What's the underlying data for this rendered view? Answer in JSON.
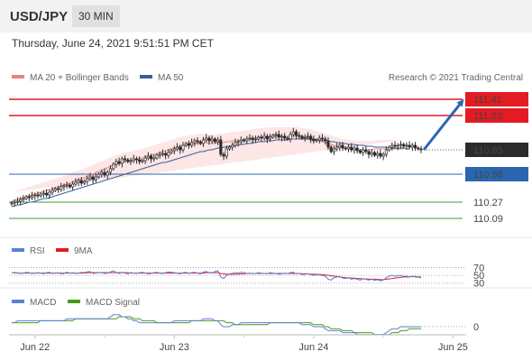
{
  "header": {
    "pair": "USD/JPY",
    "timeframe": "30 MIN",
    "datetime": "Thursday, June 24, 2021 9:51:51 PM CET"
  },
  "legend": {
    "ma20": "MA 20 + Bollinger Bands",
    "ma50": "MA 50",
    "copyright": "Research © 2021 Trading Central"
  },
  "colors": {
    "resistance": "#e31b23",
    "pivot": "#2a66b0",
    "support": "#3f9a3f",
    "ma20": "#f08080",
    "ma50": "#3a5fa0",
    "candle_up": "#2b2b2b",
    "candle_down": "#2b2b2b",
    "rsi": "#5b7fd4",
    "rsi_ma": "#e31b23",
    "macd": "#5b7fd4",
    "macd_signal": "#4a9a1a",
    "arrow": "#2a66b0"
  },
  "levels": [
    {
      "value": 111.41,
      "label": "111.41",
      "kind": "resistance"
    },
    {
      "value": 111.23,
      "label": "111.23",
      "kind": "resistance"
    },
    {
      "value": 110.85,
      "label": "110.85",
      "kind": "last"
    },
    {
      "value": 110.58,
      "label": "110.58",
      "kind": "pivot"
    },
    {
      "value": 110.27,
      "label": "110.27",
      "kind": "support"
    },
    {
      "value": 110.09,
      "label": "110.09",
      "kind": "support"
    }
  ],
  "chart_data": {
    "type": "candlestick",
    "x_labels": [
      "Jun 22",
      "Jun 23",
      "Jun 24",
      "Jun 25"
    ],
    "x_label_index": [
      8,
      56,
      104,
      152
    ],
    "price_range": [
      109.95,
      111.55
    ],
    "closes": [
      110.26,
      110.27,
      110.28,
      110.3,
      110.31,
      110.33,
      110.32,
      110.34,
      110.35,
      110.34,
      110.36,
      110.37,
      110.35,
      110.38,
      110.4,
      110.42,
      110.41,
      110.44,
      110.45,
      110.46,
      110.44,
      110.47,
      110.49,
      110.51,
      110.48,
      110.5,
      110.53,
      110.55,
      110.52,
      110.55,
      110.58,
      110.6,
      110.57,
      110.6,
      110.64,
      110.69,
      110.72,
      110.7,
      110.75,
      110.74,
      110.72,
      110.73,
      110.75,
      110.74,
      110.72,
      110.73,
      110.76,
      110.78,
      110.75,
      110.76,
      110.79,
      110.8,
      110.81,
      110.79,
      110.82,
      110.84,
      110.86,
      110.88,
      110.85,
      110.9,
      110.92,
      110.9,
      110.93,
      110.95,
      110.94,
      110.92,
      110.96,
      110.98,
      110.95,
      110.97,
      110.94,
      110.96,
      110.8,
      110.78,
      110.86,
      110.88,
      110.9,
      110.93,
      110.94,
      110.96,
      110.95,
      110.97,
      110.98,
      110.96,
      110.97,
      110.99,
      110.98,
      111.0,
      110.97,
      110.99,
      111.01,
      111.02,
      110.99,
      111.0,
      110.98,
      110.97,
      111.02,
      111.05,
      111.01,
      111.0,
      110.98,
      110.99,
      111.0,
      110.97,
      110.95,
      110.96,
      110.98,
      110.97,
      110.95,
      110.88,
      110.83,
      110.86,
      110.88,
      110.9,
      110.87,
      110.86,
      110.88,
      110.85,
      110.87,
      110.84,
      110.82,
      110.85,
      110.83,
      110.8,
      110.82,
      110.79,
      110.81,
      110.78,
      110.8,
      110.85,
      110.88,
      110.9,
      110.89,
      110.9,
      110.91,
      110.89,
      110.9,
      110.88,
      110.9,
      110.87,
      110.86,
      110.85
    ],
    "ma20": [
      110.28,
      110.29,
      110.3,
      110.31,
      110.32,
      110.33,
      110.34,
      110.35,
      110.36,
      110.37,
      110.38,
      110.39,
      110.4,
      110.41,
      110.42,
      110.43,
      110.44,
      110.45,
      110.46,
      110.47,
      110.48,
      110.5,
      110.51,
      110.52,
      110.53,
      110.54,
      110.56,
      110.57,
      110.58,
      110.6,
      110.61,
      110.62,
      110.64,
      110.65,
      110.67,
      110.68,
      110.69,
      110.7,
      110.71,
      110.72,
      110.73,
      110.73,
      110.74,
      110.75,
      110.75,
      110.76,
      110.77,
      110.78,
      110.79,
      110.8,
      110.81,
      110.82,
      110.83,
      110.84,
      110.85,
      110.86,
      110.87,
      110.88,
      110.89,
      110.9,
      110.9,
      110.91,
      110.91,
      110.92,
      110.92,
      110.93,
      110.93,
      110.93,
      110.92,
      110.92,
      110.92,
      110.93,
      110.93,
      110.93,
      110.94,
      110.94,
      110.95,
      110.95,
      110.95,
      110.96,
      110.96,
      110.97,
      110.97,
      110.98,
      110.98,
      110.99,
      110.99,
      110.99,
      111.0,
      111.0,
      111.0,
      111.0,
      111.0,
      111.0,
      111.0,
      111.0,
      111.0,
      111.0,
      111.0,
      111.0,
      110.99,
      110.99,
      110.98,
      110.98,
      110.97,
      110.96,
      110.95,
      110.94,
      110.93,
      110.92,
      110.91,
      110.9,
      110.89,
      110.88,
      110.87,
      110.87,
      110.86,
      110.86,
      110.85,
      110.85,
      110.85,
      110.85,
      110.85,
      110.85,
      110.85,
      110.86,
      110.86,
      110.86,
      110.86,
      110.86,
      110.86,
      110.86,
      110.86,
      110.86,
      110.86,
      110.86
    ],
    "ma50": [
      110.22,
      110.23,
      110.24,
      110.24,
      110.25,
      110.26,
      110.27,
      110.27,
      110.28,
      110.29,
      110.3,
      110.31,
      110.31,
      110.32,
      110.33,
      110.34,
      110.35,
      110.36,
      110.37,
      110.38,
      110.39,
      110.4,
      110.41,
      110.42,
      110.43,
      110.44,
      110.45,
      110.46,
      110.47,
      110.48,
      110.49,
      110.5,
      110.51,
      110.52,
      110.53,
      110.54,
      110.55,
      110.56,
      110.57,
      110.58,
      110.59,
      110.6,
      110.61,
      110.62,
      110.63,
      110.64,
      110.65,
      110.66,
      110.67,
      110.68,
      110.69,
      110.7,
      110.71,
      110.71,
      110.72,
      110.73,
      110.74,
      110.75,
      110.76,
      110.77,
      110.78,
      110.79,
      110.8,
      110.81,
      110.82,
      110.83,
      110.83,
      110.84,
      110.85,
      110.85,
      110.86,
      110.87,
      110.87,
      110.88,
      110.88,
      110.89,
      110.89,
      110.9,
      110.9,
      110.91,
      110.91,
      110.92,
      110.92,
      110.93,
      110.93,
      110.94,
      110.94,
      110.94,
      110.95,
      110.95,
      110.95,
      110.96,
      110.96,
      110.96,
      110.96,
      110.96,
      110.97,
      110.97,
      110.97,
      110.97,
      110.97,
      110.97,
      110.97,
      110.96,
      110.96,
      110.96,
      110.96,
      110.95,
      110.95,
      110.95,
      110.94,
      110.94,
      110.93,
      110.93,
      110.92,
      110.92,
      110.91,
      110.91,
      110.91,
      110.9,
      110.9,
      110.9,
      110.89,
      110.89,
      110.89,
      110.88,
      110.88,
      110.88,
      110.88,
      110.88,
      110.87,
      110.87,
      110.87,
      110.87,
      110.87,
      110.87,
      110.86,
      110.86
    ],
    "bb_width": 0.1,
    "projection": {
      "from": 110.85,
      "to": 111.41
    },
    "rsi": {
      "legend": [
        "RSI",
        "9MA"
      ],
      "levels": [
        "70",
        "50",
        "30"
      ],
      "level_values": [
        70,
        50,
        30
      ],
      "rsi": [
        58,
        56,
        57,
        55,
        56,
        58,
        57,
        55,
        56,
        57,
        56,
        54,
        57,
        58,
        55,
        56,
        57,
        54,
        55,
        58,
        56,
        57,
        55,
        56,
        58,
        57,
        59,
        60,
        55,
        56,
        58,
        57,
        55,
        56,
        59,
        62,
        57,
        55,
        58,
        56,
        54,
        57,
        56,
        55,
        57,
        58,
        56,
        54,
        55,
        57,
        58,
        56,
        55,
        57,
        59,
        58,
        57,
        56,
        54,
        57,
        58,
        55,
        57,
        58,
        56,
        54,
        59,
        60,
        57,
        56,
        60,
        62,
        46,
        42,
        50,
        54,
        55,
        57,
        56,
        58,
        57,
        55,
        56,
        54,
        55,
        57,
        56,
        55,
        54,
        57,
        56,
        55,
        53,
        54,
        56,
        55,
        57,
        58,
        54,
        55,
        52,
        53,
        54,
        52,
        50,
        52,
        51,
        50,
        48,
        40,
        38,
        44,
        46,
        47,
        43,
        42,
        44,
        40,
        42,
        40,
        38,
        41,
        40,
        38,
        40,
        37,
        39,
        36,
        38,
        44,
        48,
        50,
        48,
        49,
        50,
        47,
        48,
        46,
        48,
        46,
        45,
        44
      ],
      "ma": [
        57,
        57,
        56,
        56,
        56,
        56,
        56,
        56,
        56,
        56,
        56,
        56,
        56,
        56,
        56,
        56,
        56,
        56,
        56,
        56,
        56,
        56,
        56,
        56,
        56,
        56,
        57,
        57,
        57,
        57,
        57,
        57,
        57,
        57,
        57,
        57,
        57,
        57,
        57,
        57,
        57,
        56,
        56,
        56,
        56,
        56,
        56,
        56,
        56,
        56,
        56,
        56,
        56,
        56,
        56,
        56,
        56,
        56,
        56,
        56,
        56,
        56,
        56,
        56,
        56,
        56,
        56,
        57,
        57,
        57,
        57,
        57,
        55,
        54,
        53,
        53,
        53,
        53,
        53,
        54,
        54,
        55,
        55,
        55,
        55,
        55,
        55,
        55,
        55,
        55,
        55,
        55,
        55,
        55,
        55,
        55,
        55,
        55,
        55,
        55,
        54,
        54,
        54,
        53,
        53,
        53,
        52,
        52,
        51,
        50,
        49,
        48,
        47,
        46,
        45,
        44,
        44,
        43,
        43,
        42,
        42,
        41,
        41,
        40,
        40,
        40,
        40,
        39,
        39,
        40,
        41,
        42,
        43,
        44,
        45,
        46,
        46,
        46,
        47,
        47,
        46,
        46
      ]
    },
    "macd": {
      "legend": [
        "MACD",
        "MACD Signal"
      ],
      "zero_label": "0",
      "macd": [
        0.02,
        0.02,
        0.03,
        0.03,
        0.03,
        0.03,
        0.03,
        0.03,
        0.03,
        0.03,
        0.03,
        0.03,
        0.03,
        0.03,
        0.03,
        0.03,
        0.03,
        0.03,
        0.03,
        0.04,
        0.04,
        0.04,
        0.04,
        0.04,
        0.04,
        0.04,
        0.04,
        0.04,
        0.04,
        0.04,
        0.04,
        0.04,
        0.04,
        0.04,
        0.05,
        0.06,
        0.06,
        0.06,
        0.05,
        0.05,
        0.04,
        0.04,
        0.03,
        0.03,
        0.02,
        0.02,
        0.02,
        0.02,
        0.02,
        0.02,
        0.02,
        0.02,
        0.02,
        0.02,
        0.02,
        0.02,
        0.03,
        0.03,
        0.03,
        0.03,
        0.03,
        0.03,
        0.03,
        0.03,
        0.03,
        0.03,
        0.04,
        0.04,
        0.04,
        0.04,
        0.03,
        0.03,
        0.01,
        0.0,
        0.0,
        0.0,
        0.01,
        0.01,
        0.01,
        0.02,
        0.02,
        0.02,
        0.02,
        0.02,
        0.02,
        0.02,
        0.02,
        0.02,
        0.02,
        0.02,
        0.02,
        0.02,
        0.02,
        0.02,
        0.02,
        0.02,
        0.02,
        0.02,
        0.02,
        0.02,
        0.01,
        0.01,
        0.01,
        0.01,
        0.0,
        0.0,
        0.0,
        0.0,
        -0.01,
        -0.02,
        -0.02,
        -0.02,
        -0.02,
        -0.02,
        -0.03,
        -0.03,
        -0.03,
        -0.03,
        -0.03,
        -0.04,
        -0.04,
        -0.04,
        -0.04,
        -0.04,
        -0.04,
        -0.04,
        -0.04,
        -0.04,
        -0.04,
        -0.03,
        -0.02,
        -0.01,
        -0.01,
        -0.01,
        0.0,
        0.0,
        0.0,
        0.0,
        0.0,
        0.0,
        0.0,
        0.0
      ],
      "signal": [
        0.02,
        0.02,
        0.02,
        0.02,
        0.02,
        0.02,
        0.02,
        0.02,
        0.02,
        0.02,
        0.03,
        0.03,
        0.03,
        0.03,
        0.03,
        0.03,
        0.03,
        0.03,
        0.03,
        0.03,
        0.03,
        0.03,
        0.04,
        0.04,
        0.04,
        0.04,
        0.04,
        0.04,
        0.04,
        0.04,
        0.04,
        0.04,
        0.04,
        0.04,
        0.04,
        0.04,
        0.04,
        0.05,
        0.05,
        0.05,
        0.05,
        0.05,
        0.04,
        0.04,
        0.04,
        0.03,
        0.03,
        0.03,
        0.03,
        0.03,
        0.02,
        0.02,
        0.02,
        0.02,
        0.02,
        0.02,
        0.02,
        0.02,
        0.02,
        0.02,
        0.02,
        0.02,
        0.03,
        0.03,
        0.03,
        0.03,
        0.03,
        0.03,
        0.03,
        0.03,
        0.03,
        0.03,
        0.03,
        0.03,
        0.02,
        0.02,
        0.02,
        0.01,
        0.01,
        0.01,
        0.01,
        0.01,
        0.01,
        0.01,
        0.01,
        0.01,
        0.01,
        0.01,
        0.01,
        0.02,
        0.02,
        0.02,
        0.02,
        0.02,
        0.02,
        0.02,
        0.02,
        0.02,
        0.02,
        0.02,
        0.02,
        0.02,
        0.02,
        0.02,
        0.01,
        0.01,
        0.01,
        0.01,
        0.0,
        0.0,
        -0.01,
        -0.01,
        -0.01,
        -0.01,
        -0.02,
        -0.02,
        -0.02,
        -0.02,
        -0.03,
        -0.03,
        -0.03,
        -0.03,
        -0.03,
        -0.03,
        -0.03,
        -0.04,
        -0.04,
        -0.04,
        -0.04,
        -0.04,
        -0.04,
        -0.03,
        -0.03,
        -0.03,
        -0.02,
        -0.02,
        -0.02,
        -0.01,
        -0.01,
        -0.01,
        -0.01,
        -0.01
      ]
    }
  }
}
